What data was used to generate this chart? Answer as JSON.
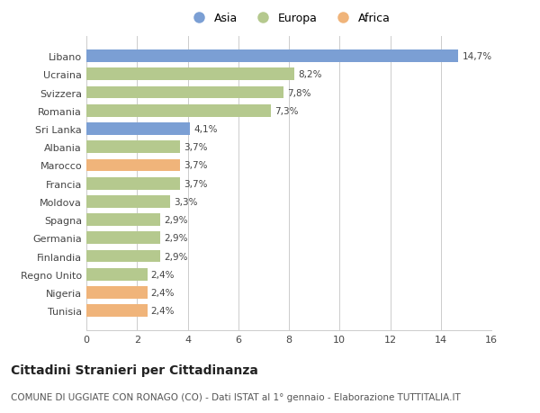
{
  "categories": [
    "Tunisia",
    "Nigeria",
    "Regno Unito",
    "Finlandia",
    "Germania",
    "Spagna",
    "Moldova",
    "Francia",
    "Marocco",
    "Albania",
    "Sri Lanka",
    "Romania",
    "Svizzera",
    "Ucraina",
    "Libano"
  ],
  "values": [
    2.4,
    2.4,
    2.4,
    2.9,
    2.9,
    2.9,
    3.3,
    3.7,
    3.7,
    3.7,
    4.1,
    7.3,
    7.8,
    8.2,
    14.7
  ],
  "labels": [
    "2,4%",
    "2,4%",
    "2,4%",
    "2,9%",
    "2,9%",
    "2,9%",
    "3,3%",
    "3,7%",
    "3,7%",
    "3,7%",
    "4,1%",
    "7,3%",
    "7,8%",
    "8,2%",
    "14,7%"
  ],
  "continents": [
    "Africa",
    "Africa",
    "Europa",
    "Europa",
    "Europa",
    "Europa",
    "Europa",
    "Europa",
    "Africa",
    "Europa",
    "Asia",
    "Europa",
    "Europa",
    "Europa",
    "Asia"
  ],
  "colors": {
    "Asia": "#7b9fd4",
    "Europa": "#b5c98e",
    "Africa": "#f0b47a"
  },
  "xlim": [
    0,
    16
  ],
  "xticks": [
    0,
    2,
    4,
    6,
    8,
    10,
    12,
    14,
    16
  ],
  "title": "Cittadini Stranieri per Cittadinanza",
  "subtitle": "COMUNE DI UGGIATE CON RONAGO (CO) - Dati ISTAT al 1° gennaio - Elaborazione TUTTITALIA.IT",
  "background_color": "#ffffff",
  "grid_color": "#cccccc",
  "bar_height": 0.68,
  "label_fontsize": 7.5,
  "ytick_fontsize": 8.0,
  "xtick_fontsize": 8.0,
  "title_fontsize": 10,
  "subtitle_fontsize": 7.5,
  "legend_order": [
    "Asia",
    "Europa",
    "Africa"
  ]
}
